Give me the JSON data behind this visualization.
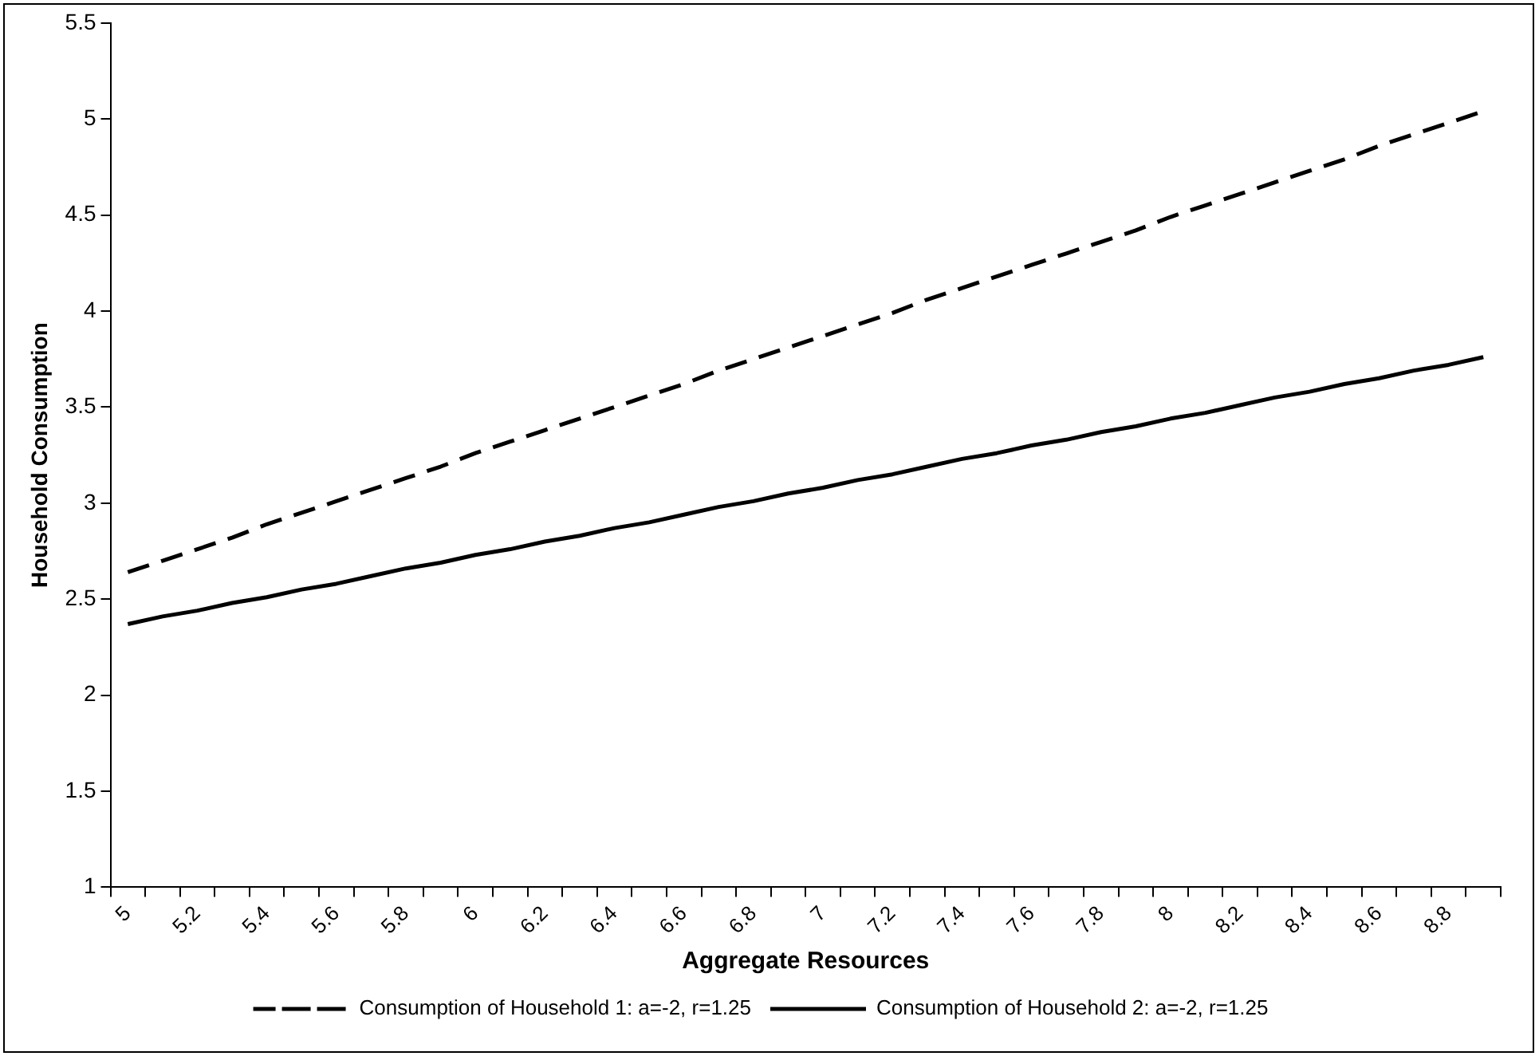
{
  "chart_data": {
    "type": "line",
    "xlabel": "Aggregate Resources",
    "ylabel": "Household Consumption",
    "categories": [
      "5",
      null,
      "5.2",
      null,
      "5.4",
      null,
      "5.6",
      null,
      "5.8",
      null,
      "6",
      null,
      "6.2",
      null,
      "6.4",
      null,
      "6.6",
      null,
      "6.8",
      null,
      "7",
      null,
      "7.2",
      null,
      "7.4",
      null,
      "7.6",
      null,
      "7.8",
      null,
      "8",
      null,
      "8.2",
      null,
      "8.4",
      null,
      "8.6",
      null,
      "8.8",
      null
    ],
    "series": [
      {
        "name": "Consumption of Household 1: a=-2, r=1.25",
        "color": "#000000",
        "line_style": "dashed",
        "values": [
          2.64,
          2.7,
          2.76,
          2.82,
          2.89,
          2.95,
          3.01,
          3.07,
          3.13,
          3.19,
          3.26,
          3.32,
          3.38,
          3.44,
          3.5,
          3.56,
          3.62,
          3.69,
          3.75,
          3.81,
          3.87,
          3.93,
          3.99,
          4.06,
          4.12,
          4.18,
          4.24,
          4.3,
          4.36,
          4.42,
          4.49,
          4.55,
          4.61,
          4.67,
          4.73,
          4.79,
          4.86,
          4.92,
          4.98,
          5.04
        ]
      },
      {
        "name": "Consumption of Household 2: a=-2, r=1.25",
        "color": "#000000",
        "line_style": "solid",
        "values": [
          2.37,
          2.41,
          2.44,
          2.48,
          2.51,
          2.55,
          2.58,
          2.62,
          2.66,
          2.69,
          2.73,
          2.76,
          2.8,
          2.83,
          2.87,
          2.9,
          2.94,
          2.98,
          3.01,
          3.05,
          3.08,
          3.12,
          3.15,
          3.19,
          3.23,
          3.26,
          3.3,
          3.33,
          3.37,
          3.4,
          3.44,
          3.47,
          3.51,
          3.55,
          3.58,
          3.62,
          3.65,
          3.69,
          3.72,
          3.76
        ]
      }
    ],
    "ylim": [
      1,
      5.5
    ],
    "yticks": [
      1,
      1.5,
      2,
      2.5,
      3,
      3.5,
      4,
      4.5,
      5,
      5.5
    ],
    "grid": false,
    "legend": "bottom",
    "marker": "none"
  }
}
